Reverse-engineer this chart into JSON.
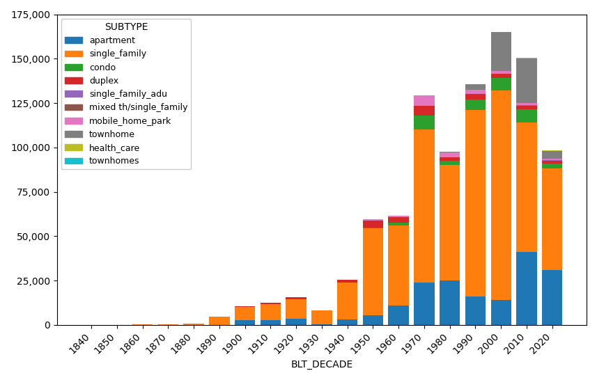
{
  "decades": [
    1840,
    1850,
    1860,
    1870,
    1880,
    1890,
    1900,
    1910,
    1920,
    1930,
    1940,
    1950,
    1960,
    1970,
    1980,
    1990,
    2000,
    2010,
    2020
  ],
  "subtypes": [
    "apartment",
    "single_family",
    "condo",
    "duplex",
    "single_family_adu",
    "mixed th/single_family",
    "mobile_home_park",
    "townhome",
    "health_care",
    "townhomes"
  ],
  "colors": [
    "#1f77b4",
    "#ff7f0e",
    "#2ca02c",
    "#d62728",
    "#9467bd",
    "#8c564b",
    "#e377c2",
    "#7f7f7f",
    "#bcbd22",
    "#17becf"
  ],
  "data": {
    "apartment": [
      0,
      0,
      0,
      0,
      50,
      100,
      2500,
      2800,
      3500,
      500,
      3000,
      5500,
      11000,
      24000,
      25000,
      16000,
      14000,
      41000,
      31000
    ],
    "single_family": [
      50,
      100,
      150,
      200,
      800,
      4500,
      7500,
      9000,
      11000,
      7500,
      21000,
      49000,
      45000,
      86000,
      65000,
      105000,
      118000,
      73000,
      57000
    ],
    "condo": [
      0,
      0,
      0,
      0,
      0,
      0,
      0,
      0,
      0,
      0,
      0,
      300,
      1500,
      8000,
      2500,
      6000,
      7000,
      7500,
      3000
    ],
    "duplex": [
      0,
      0,
      0,
      0,
      0,
      0,
      600,
      700,
      1200,
      300,
      1500,
      4000,
      3200,
      5500,
      2000,
      3000,
      2500,
      2000,
      1500
    ],
    "single_family_adu": [
      0,
      0,
      0,
      0,
      0,
      0,
      0,
      0,
      0,
      0,
      0,
      0,
      0,
      0,
      0,
      0,
      0,
      500,
      500
    ],
    "mixed th/single_family": [
      0,
      0,
      0,
      0,
      0,
      0,
      0,
      0,
      0,
      0,
      0,
      0,
      0,
      0,
      0,
      0,
      0,
      0,
      0
    ],
    "mobile_home_park": [
      0,
      0,
      0,
      0,
      0,
      0,
      0,
      0,
      0,
      0,
      0,
      800,
      800,
      6000,
      2500,
      2500,
      1500,
      1000,
      500
    ],
    "townhome": [
      0,
      0,
      0,
      0,
      0,
      0,
      0,
      0,
      0,
      0,
      0,
      0,
      0,
      0,
      500,
      3000,
      22000,
      25000,
      4500
    ],
    "health_care": [
      0,
      0,
      0,
      0,
      0,
      0,
      0,
      0,
      0,
      0,
      0,
      0,
      0,
      0,
      0,
      0,
      0,
      500,
      200
    ],
    "townhomes": [
      0,
      0,
      0,
      0,
      0,
      0,
      0,
      0,
      0,
      0,
      0,
      0,
      0,
      0,
      0,
      0,
      0,
      0,
      200
    ]
  },
  "xlabel": "BLT_DECADE",
  "ylim": [
    0,
    175000
  ],
  "yticks": [
    0,
    25000,
    50000,
    75000,
    100000,
    125000,
    150000,
    175000
  ],
  "legend_title": "SUBTYPE"
}
